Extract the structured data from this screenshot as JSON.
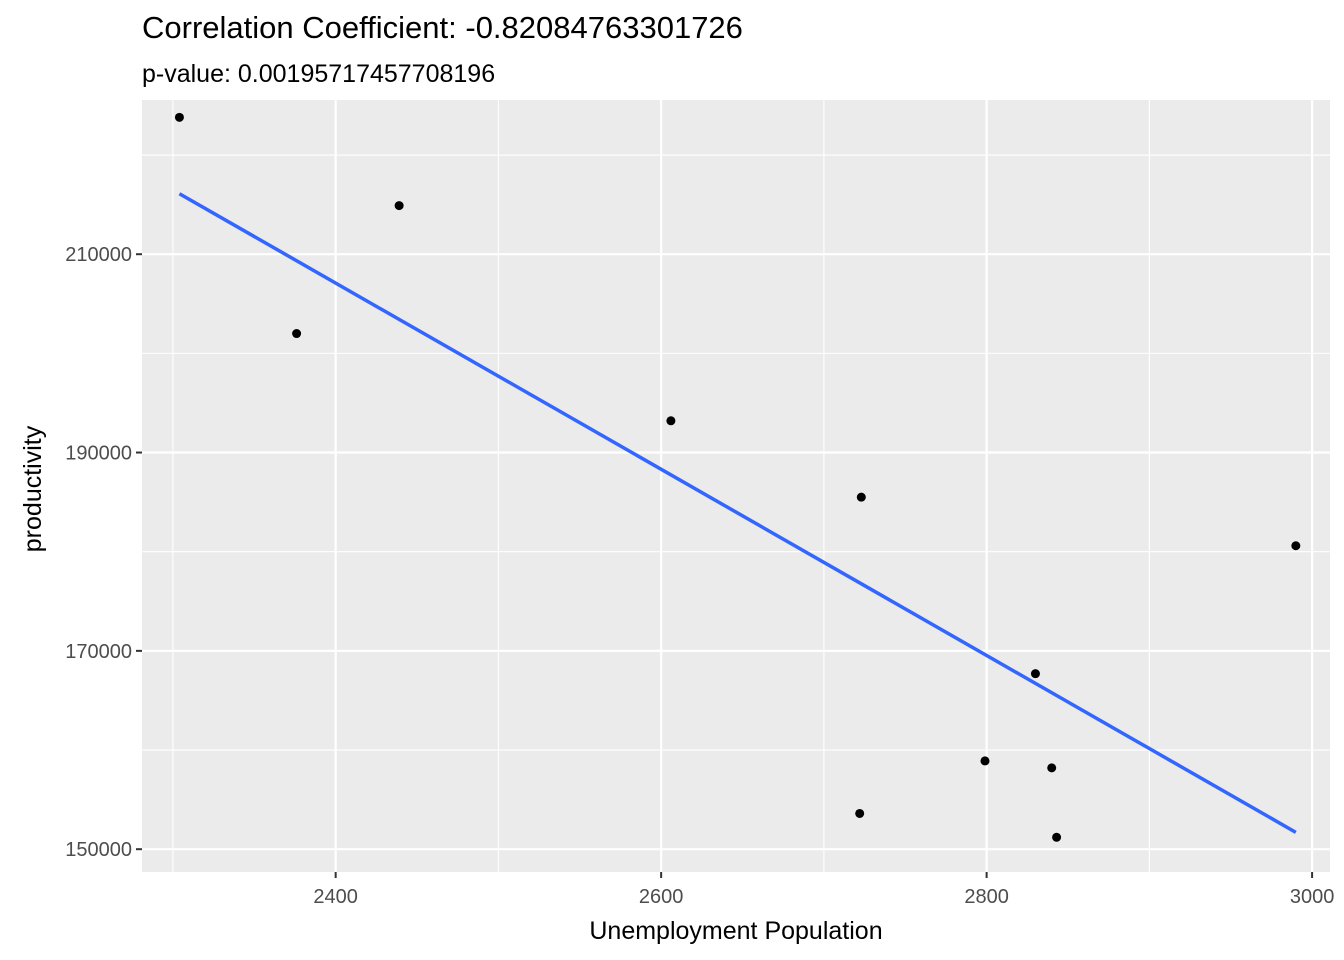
{
  "chart_data": {
    "type": "scatter",
    "title": "Correlation Coefficient: -0.82084763301726",
    "subtitle": "p-value: 0.00195717457708196",
    "xlabel": "Unemployment Population",
    "ylabel": "productivity",
    "xlim": [
      2281,
      3011
    ],
    "ylim": [
      147700,
      225550
    ],
    "x_ticks": [
      2400,
      2600,
      2800,
      3000
    ],
    "x_minor_ticks": [
      2300,
      2500,
      2700,
      2900
    ],
    "y_ticks": [
      150000,
      170000,
      190000,
      210000
    ],
    "y_minor_ticks": [
      160000,
      180000,
      200000,
      220000
    ],
    "grid": true,
    "legend": "none",
    "point_color": "#000000",
    "line_color": "#3366ff",
    "panel_color": "#ebebeb",
    "points": [
      {
        "x": 2304,
        "y": 223800
      },
      {
        "x": 2376,
        "y": 202000
      },
      {
        "x": 2439,
        "y": 214900
      },
      {
        "x": 2606,
        "y": 193200
      },
      {
        "x": 2723,
        "y": 185500
      },
      {
        "x": 2722,
        "y": 153600
      },
      {
        "x": 2799,
        "y": 158900
      },
      {
        "x": 2830,
        "y": 167700
      },
      {
        "x": 2840,
        "y": 158200
      },
      {
        "x": 2843,
        "y": 151200
      },
      {
        "x": 2990,
        "y": 180600
      }
    ],
    "trend_line": {
      "x": [
        2304,
        2990
      ],
      "y": [
        216100,
        151700
      ]
    }
  }
}
